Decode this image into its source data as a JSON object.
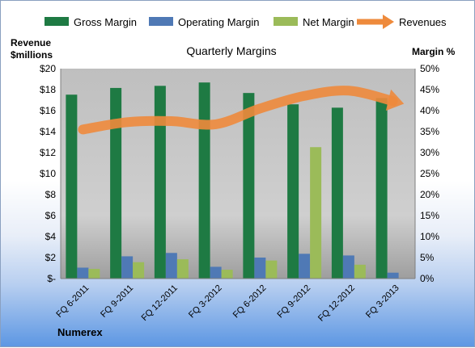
{
  "chart_data": {
    "type": "bar",
    "title": "Quarterly Margins",
    "left_axis_label_line1": "Revenue",
    "left_axis_label_line2": "$millions",
    "right_axis_label": "Margin %",
    "company": "Numerex",
    "categories": [
      "FQ 6-2011",
      "FQ 9-2011",
      "FQ 12-2011",
      "FQ 3-2012",
      "FQ 6-2012",
      "FQ 9-2012",
      "FQ 12-2012",
      "FQ 3-2013"
    ],
    "left_ylim": [
      0,
      20
    ],
    "right_ylim": [
      0,
      50
    ],
    "left_ticks": [
      "$-",
      "$2",
      "$4",
      "$6",
      "$8",
      "$10",
      "$12",
      "$14",
      "$16",
      "$18",
      "$20"
    ],
    "right_ticks": [
      "0%",
      "5%",
      "10%",
      "15%",
      "20%",
      "25%",
      "30%",
      "35%",
      "40%",
      "45%",
      "50%"
    ],
    "series": [
      {
        "name": "Gross Margin",
        "axis": "right",
        "color": "#1e7a43",
        "values": [
          43.8,
          45.4,
          45.9,
          46.7,
          44.2,
          41.5,
          40.7,
          43.0
        ]
      },
      {
        "name": "Operating Margin",
        "axis": "right",
        "color": "#4f79b5",
        "values": [
          2.6,
          5.3,
          6.1,
          2.8,
          5.0,
          5.9,
          5.5,
          1.4
        ]
      },
      {
        "name": "Net Margin",
        "axis": "right",
        "color": "#9bbb59",
        "values": [
          2.3,
          3.9,
          4.6,
          2.1,
          4.3,
          31.3,
          3.3,
          0.0
        ]
      },
      {
        "name": "Revenues",
        "axis": "left",
        "color": "#ee8a3c",
        "values": [
          14.2,
          14.9,
          15.0,
          14.7,
          16.2,
          17.4,
          17.9,
          16.9
        ]
      }
    ],
    "legend_position": "top",
    "grid": false
  }
}
